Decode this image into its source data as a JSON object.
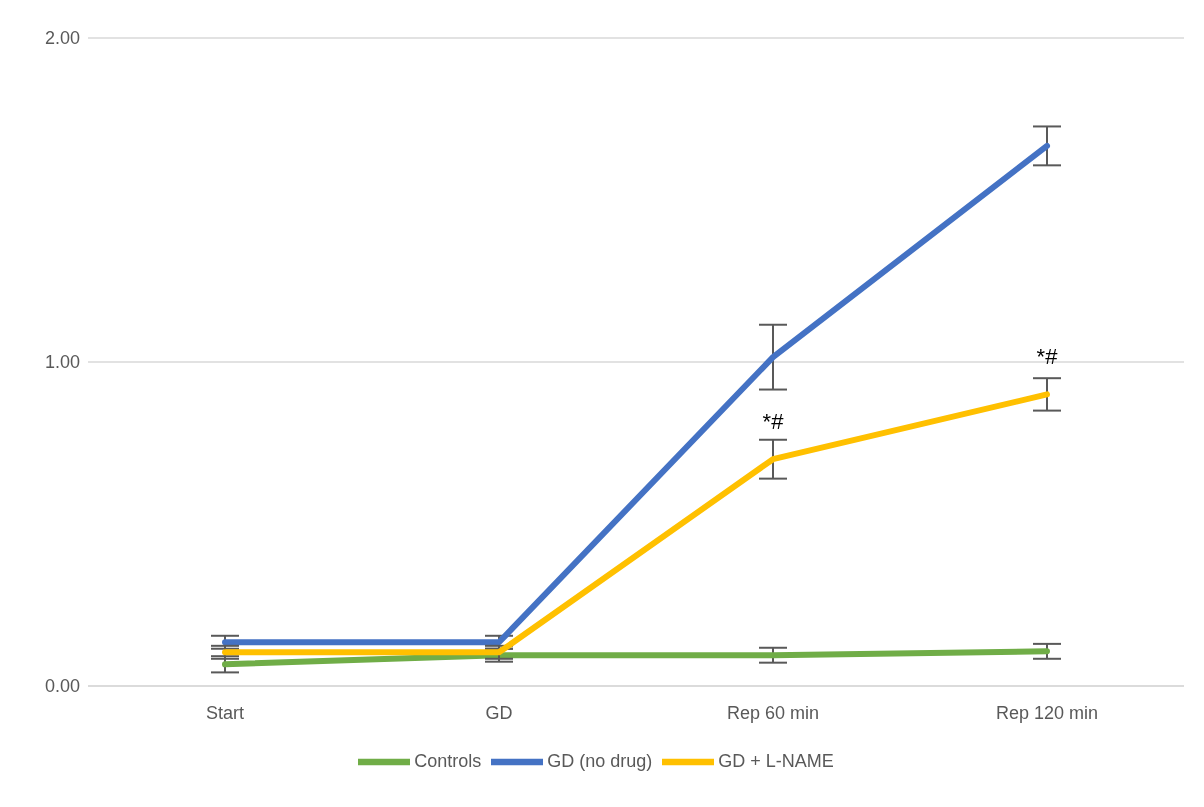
{
  "chart_data": {
    "type": "line",
    "categories": [
      "Start",
      "GD",
      "Rep 60 min",
      "Rep 120 min"
    ],
    "series": [
      {
        "name": "Controls",
        "color": "#70ad47",
        "values": [
          0.067,
          0.095,
          0.095,
          0.107
        ],
        "errors": [
          0.025,
          0.02,
          0.023,
          0.023
        ]
      },
      {
        "name": "GD (no drug)",
        "color": "#4472c4",
        "values": [
          0.135,
          0.135,
          1.015,
          1.667
        ],
        "errors": [
          0.02,
          0.02,
          0.1,
          0.06
        ]
      },
      {
        "name": "GD + L-NAME",
        "color": "#ffc000",
        "values": [
          0.104,
          0.104,
          0.7,
          0.9
        ],
        "errors": [
          0.02,
          0.02,
          0.06,
          0.05
        ]
      }
    ],
    "ylim": [
      0,
      2
    ],
    "yticks": [
      {
        "value": 0,
        "label": "0.00"
      },
      {
        "value": 1,
        "label": "1.00"
      },
      {
        "value": 2,
        "label": "2.00"
      }
    ],
    "grid": "y",
    "legend": "bottom",
    "marker": "none",
    "line_style": "solid",
    "annotations": [
      {
        "text": "*#",
        "x": "Rep 60 min",
        "y": 0.7
      },
      {
        "text": "*#",
        "x": "Rep 120 min",
        "y": 0.9
      }
    ]
  }
}
